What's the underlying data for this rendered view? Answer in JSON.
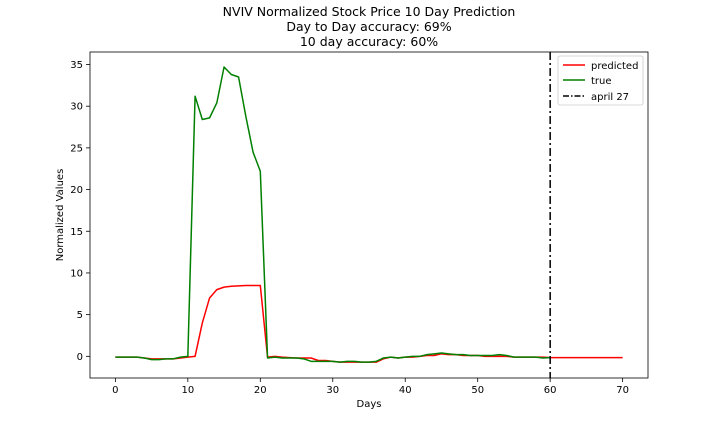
{
  "chart_data": {
    "type": "line",
    "title_lines": [
      "NVIV Normalized Stock Price 10 Day Prediction",
      "Day to Day accuracy: 69%",
      "10 day accuracy: 60%"
    ],
    "xlabel": "Days",
    "ylabel": "Normalized Values",
    "xlim": [
      -3.5,
      73.5
    ],
    "ylim": [
      -2.6,
      36.5
    ],
    "xticks": [
      0,
      10,
      20,
      30,
      40,
      50,
      60,
      70
    ],
    "yticks": [
      0,
      5,
      10,
      15,
      20,
      25,
      30,
      35
    ],
    "grid": false,
    "legend_position": "top-right",
    "series": [
      {
        "name": "predicted",
        "color": "#ff0000",
        "x": [
          0,
          1,
          2,
          3,
          4,
          5,
          6,
          7,
          8,
          9,
          10,
          11,
          12,
          13,
          14,
          15,
          16,
          17,
          18,
          19,
          20,
          21,
          22,
          23,
          24,
          25,
          26,
          27,
          28,
          29,
          30,
          31,
          32,
          33,
          34,
          35,
          36,
          37,
          38,
          39,
          40,
          41,
          42,
          43,
          44,
          45,
          46,
          47,
          48,
          49,
          50,
          51,
          52,
          53,
          54,
          55,
          56,
          57,
          58,
          59,
          60,
          61,
          62,
          63,
          64,
          65,
          66,
          67,
          68,
          69,
          70
        ],
        "values": [
          -0.1,
          -0.1,
          -0.1,
          -0.1,
          -0.2,
          -0.3,
          -0.3,
          -0.3,
          -0.3,
          -0.2,
          -0.1,
          0.0,
          4.0,
          7.0,
          8.0,
          8.3,
          8.4,
          8.45,
          8.5,
          8.5,
          8.5,
          -0.1,
          0.0,
          -0.1,
          -0.15,
          -0.2,
          -0.2,
          -0.2,
          -0.5,
          -0.5,
          -0.6,
          -0.7,
          -0.7,
          -0.7,
          -0.7,
          -0.7,
          -0.7,
          -0.3,
          -0.1,
          -0.2,
          -0.1,
          -0.1,
          0.0,
          0.1,
          0.1,
          0.3,
          0.2,
          0.2,
          0.1,
          0.1,
          0.1,
          0.0,
          0.0,
          0.0,
          0.0,
          -0.1,
          -0.1,
          -0.1,
          -0.1,
          -0.1,
          -0.15,
          -0.15,
          -0.15,
          -0.15,
          -0.15,
          -0.15,
          -0.15,
          -0.15,
          -0.15,
          -0.15,
          -0.15
        ]
      },
      {
        "name": "true",
        "color": "#008000",
        "x": [
          0,
          1,
          2,
          3,
          4,
          5,
          6,
          7,
          8,
          9,
          10,
          11,
          12,
          13,
          14,
          15,
          16,
          17,
          18,
          19,
          20,
          21,
          22,
          23,
          24,
          25,
          26,
          27,
          28,
          29,
          30,
          31,
          32,
          33,
          34,
          35,
          36,
          37,
          38,
          39,
          40,
          41,
          42,
          43,
          44,
          45,
          46,
          47,
          48,
          49,
          50,
          51,
          52,
          53,
          54,
          55,
          56,
          57,
          58,
          59,
          60
        ],
        "values": [
          -0.1,
          -0.1,
          -0.1,
          -0.1,
          -0.2,
          -0.4,
          -0.4,
          -0.3,
          -0.3,
          -0.1,
          0.0,
          31.2,
          28.4,
          28.6,
          30.4,
          34.7,
          33.8,
          33.5,
          28.8,
          24.5,
          22.2,
          -0.2,
          -0.1,
          -0.2,
          -0.2,
          -0.2,
          -0.3,
          -0.6,
          -0.6,
          -0.6,
          -0.6,
          -0.7,
          -0.6,
          -0.6,
          -0.7,
          -0.7,
          -0.6,
          -0.2,
          -0.1,
          -0.2,
          -0.1,
          0.0,
          0.0,
          0.2,
          0.3,
          0.4,
          0.3,
          0.2,
          0.2,
          0.1,
          0.1,
          0.1,
          0.1,
          0.2,
          0.1,
          -0.1,
          -0.1,
          -0.1,
          -0.1,
          -0.2,
          -0.15
        ]
      }
    ],
    "vline": {
      "name": "april 27",
      "x": 60,
      "color": "#000000",
      "style": "dash-dot"
    }
  }
}
